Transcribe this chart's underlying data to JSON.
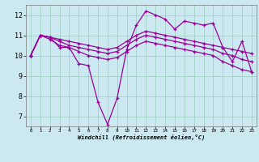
{
  "xlabel": "Windchill (Refroidissement éolien,°C)",
  "bg_color": "#cce8f0",
  "grid_color": "#99ccbb",
  "line_color": "#990099",
  "xlim": [
    -0.5,
    23.5
  ],
  "ylim": [
    6.5,
    12.5
  ],
  "x_ticks": [
    0,
    1,
    2,
    3,
    4,
    5,
    6,
    7,
    8,
    9,
    10,
    11,
    12,
    13,
    14,
    15,
    16,
    17,
    18,
    19,
    20,
    21,
    22,
    23
  ],
  "y_ticks": [
    7,
    8,
    9,
    10,
    11,
    12
  ],
  "lines": [
    [
      10.0,
      11.0,
      10.9,
      10.4,
      10.4,
      9.6,
      9.5,
      7.7,
      6.6,
      7.9,
      10.3,
      11.5,
      12.2,
      12.0,
      11.8,
      11.3,
      11.7,
      11.6,
      11.5,
      11.6,
      10.4,
      9.7,
      10.7,
      9.2
    ],
    [
      10.0,
      11.0,
      10.9,
      10.8,
      10.7,
      10.6,
      10.5,
      10.4,
      10.3,
      10.4,
      10.7,
      11.0,
      11.2,
      11.1,
      11.0,
      10.9,
      10.8,
      10.7,
      10.6,
      10.5,
      10.4,
      10.3,
      10.2,
      10.1
    ],
    [
      10.0,
      11.0,
      10.9,
      10.7,
      10.5,
      10.4,
      10.3,
      10.2,
      10.1,
      10.2,
      10.5,
      10.8,
      11.0,
      10.9,
      10.8,
      10.7,
      10.6,
      10.5,
      10.4,
      10.3,
      10.1,
      10.0,
      9.8,
      9.7
    ],
    [
      10.0,
      11.0,
      10.8,
      10.5,
      10.4,
      10.2,
      10.0,
      9.9,
      9.8,
      9.9,
      10.2,
      10.5,
      10.7,
      10.6,
      10.5,
      10.4,
      10.3,
      10.2,
      10.1,
      10.0,
      9.7,
      9.5,
      9.3,
      9.2
    ]
  ]
}
